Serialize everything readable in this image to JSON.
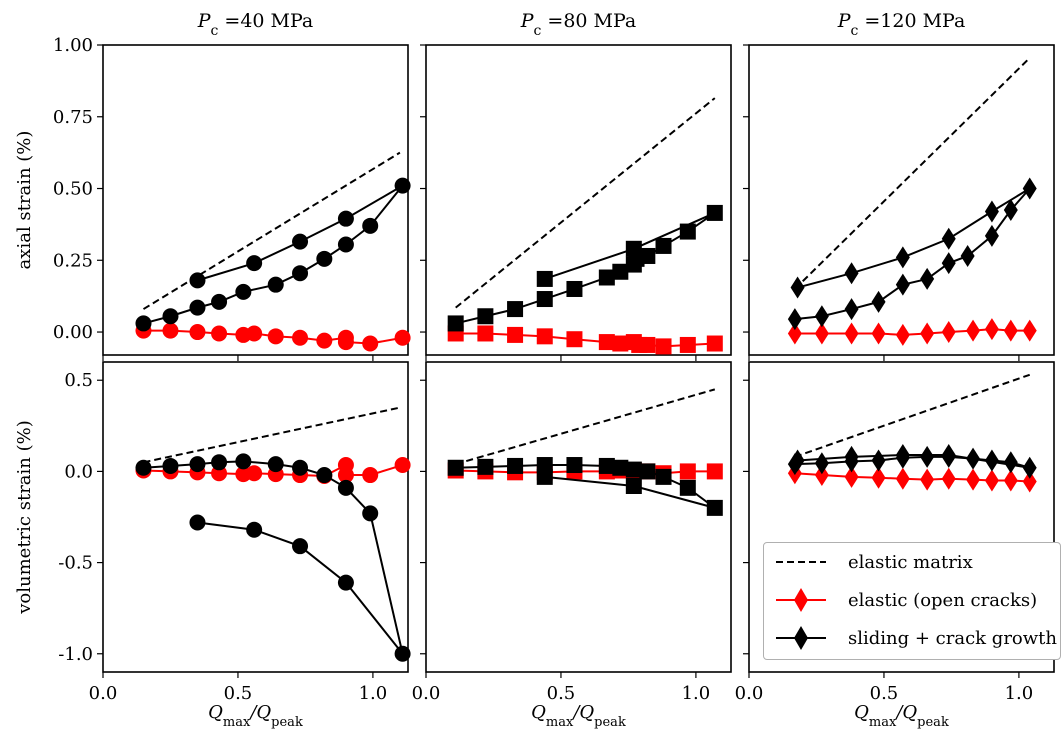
{
  "chart_data": [
    {
      "type": "line",
      "column_title": "Pc =40 MPa",
      "ylabel": "axial strain (%)",
      "xlim": [
        0,
        1.13
      ],
      "ylim": [
        -0.08,
        1.0
      ],
      "yticks": [
        "0.00",
        "0.25",
        "0.50",
        "0.75",
        "1.00"
      ],
      "series": [
        {
          "role": "elastic matrix",
          "x": [
            0.15,
            1.1
          ],
          "y": [
            0.08,
            0.625
          ]
        },
        {
          "role": "elastic (open cracks)",
          "x": [
            0.15,
            0.25,
            0.35,
            0.43,
            0.52,
            0.56,
            0.64,
            0.73,
            0.82,
            0.9,
            0.9,
            0.99,
            1.11
          ],
          "y": [
            0.005,
            0.005,
            0.0,
            -0.005,
            -0.01,
            -0.005,
            -0.015,
            -0.02,
            -0.03,
            -0.02,
            -0.035,
            -0.04,
            -0.02
          ]
        },
        {
          "role": "sliding + crack growth",
          "x": [
            0.15,
            0.25,
            0.35,
            0.43,
            0.52,
            0.64,
            0.73,
            0.82,
            0.9,
            0.99,
            1.11,
            0.9,
            0.73,
            0.56,
            0.35
          ],
          "y": [
            0.03,
            0.055,
            0.085,
            0.105,
            0.14,
            0.165,
            0.205,
            0.255,
            0.305,
            0.37,
            0.51,
            0.395,
            0.315,
            0.24,
            0.18
          ]
        }
      ]
    },
    {
      "type": "line",
      "column_title": "Pc =80 MPa",
      "ylabel": "",
      "xlim": [
        0,
        1.13
      ],
      "ylim": [
        -0.08,
        1.0
      ],
      "series": [
        {
          "role": "elastic matrix",
          "x": [
            0.11,
            1.07
          ],
          "y": [
            0.085,
            0.815
          ]
        },
        {
          "role": "elastic (open cracks)",
          "x": [
            0.11,
            0.22,
            0.33,
            0.44,
            0.55,
            0.67,
            0.72,
            0.77,
            0.79,
            0.82,
            0.88,
            0.97,
            1.07
          ],
          "y": [
            -0.005,
            -0.005,
            -0.01,
            -0.015,
            -0.025,
            -0.035,
            -0.04,
            -0.035,
            -0.045,
            -0.045,
            -0.05,
            -0.045,
            -0.04
          ]
        },
        {
          "role": "sliding + crack growth",
          "x": [
            0.11,
            0.22,
            0.33,
            0.44,
            0.55,
            0.67,
            0.72,
            0.77,
            0.78,
            0.82,
            0.88,
            0.97,
            1.07,
            0.77,
            0.44
          ],
          "y": [
            0.03,
            0.055,
            0.08,
            0.115,
            0.15,
            0.19,
            0.21,
            0.235,
            0.255,
            0.265,
            0.3,
            0.35,
            0.415,
            0.29,
            0.185
          ]
        }
      ]
    },
    {
      "type": "line",
      "column_title": "Pc =120 MPa",
      "ylabel": "",
      "xlim": [
        0,
        1.13
      ],
      "ylim": [
        -0.08,
        1.0
      ],
      "series": [
        {
          "role": "elastic matrix",
          "x": [
            0.17,
            1.04
          ],
          "y": [
            0.15,
            0.955
          ]
        },
        {
          "role": "elastic (open cracks)",
          "x": [
            0.17,
            0.27,
            0.38,
            0.48,
            0.57,
            0.66,
            0.74,
            0.83,
            0.9,
            0.97,
            1.04
          ],
          "y": [
            -0.005,
            -0.005,
            -0.005,
            -0.005,
            -0.01,
            -0.005,
            0.0,
            0.005,
            0.01,
            0.005,
            0.005
          ]
        },
        {
          "role": "sliding + crack growth",
          "x": [
            0.17,
            0.27,
            0.38,
            0.48,
            0.57,
            0.66,
            0.74,
            0.81,
            0.9,
            0.97,
            1.04,
            0.9,
            0.74,
            0.57,
            0.38,
            0.18
          ],
          "y": [
            0.045,
            0.055,
            0.08,
            0.105,
            0.165,
            0.185,
            0.24,
            0.265,
            0.335,
            0.425,
            0.5,
            0.42,
            0.325,
            0.26,
            0.205,
            0.155
          ]
        }
      ]
    },
    {
      "type": "line",
      "column_title": "",
      "xlabel": "Qmax/Qpeak",
      "ylabel": "volumetric strain (%)",
      "xlim": [
        0,
        1.13
      ],
      "ylim": [
        -1.1,
        0.6
      ],
      "xticks": [
        "0.0",
        "0.5",
        "1.0"
      ],
      "yticks": [
        "0.5",
        "0.0",
        "-0.5",
        "-1.0"
      ],
      "series": [
        {
          "role": "elastic matrix",
          "x": [
            0.15,
            1.1
          ],
          "y": [
            0.05,
            0.35
          ]
        },
        {
          "role": "elastic (open cracks)",
          "x": [
            0.15,
            0.25,
            0.35,
            0.43,
            0.52,
            0.56,
            0.64,
            0.73,
            0.82,
            0.9,
            0.9,
            0.99,
            1.11
          ],
          "y": [
            0.005,
            0.0,
            -0.005,
            -0.01,
            -0.015,
            -0.01,
            -0.015,
            -0.02,
            -0.025,
            0.035,
            -0.02,
            -0.02,
            0.035
          ]
        },
        {
          "role": "sliding + crack growth",
          "x": [
            0.15,
            0.25,
            0.35,
            0.43,
            0.52,
            0.64,
            0.73,
            0.82,
            0.9,
            0.99,
            1.11,
            0.9,
            0.73,
            0.56,
            0.35
          ],
          "y": [
            0.02,
            0.03,
            0.04,
            0.05,
            0.055,
            0.04,
            0.02,
            -0.02,
            -0.09,
            -0.23,
            -1.0,
            -0.61,
            -0.41,
            -0.32,
            -0.28
          ]
        }
      ]
    },
    {
      "type": "line",
      "column_title": "",
      "xlabel": "Qmax/Qpeak",
      "ylabel": "",
      "xlim": [
        0,
        1.13
      ],
      "ylim": [
        -1.1,
        0.6
      ],
      "xticks": [
        "0.0",
        "0.5",
        "1.0"
      ],
      "series": [
        {
          "role": "elastic matrix",
          "x": [
            0.11,
            1.07
          ],
          "y": [
            0.04,
            0.45
          ]
        },
        {
          "role": "elastic (open cracks)",
          "x": [
            0.11,
            0.22,
            0.33,
            0.44,
            0.55,
            0.67,
            0.72,
            0.77,
            0.82,
            0.88,
            0.97,
            1.07
          ],
          "y": [
            0.005,
            0.0,
            -0.005,
            -0.005,
            0.0,
            0.0,
            0.005,
            0.005,
            0.0,
            -0.01,
            0.0,
            0.0
          ]
        },
        {
          "role": "sliding + crack growth",
          "x": [
            0.11,
            0.22,
            0.33,
            0.44,
            0.55,
            0.67,
            0.72,
            0.77,
            0.82,
            0.88,
            0.97,
            1.07,
            0.77,
            0.44
          ],
          "y": [
            0.02,
            0.025,
            0.03,
            0.035,
            0.035,
            0.03,
            0.02,
            0.01,
            0.0,
            -0.03,
            -0.09,
            -0.2,
            -0.08,
            -0.03
          ]
        }
      ]
    },
    {
      "type": "line",
      "column_title": "",
      "xlabel": "Qmax/Qpeak",
      "ylabel": "",
      "xlim": [
        0,
        1.13
      ],
      "ylim": [
        -1.1,
        0.6
      ],
      "xticks": [
        "0.0",
        "0.5",
        "1.0"
      ],
      "series": [
        {
          "role": "elastic matrix",
          "x": [
            0.17,
            1.04
          ],
          "y": [
            0.08,
            0.53
          ]
        },
        {
          "role": "elastic (open cracks)",
          "x": [
            0.17,
            0.27,
            0.38,
            0.48,
            0.57,
            0.66,
            0.74,
            0.83,
            0.9,
            0.97,
            1.04
          ],
          "y": [
            -0.01,
            -0.02,
            -0.03,
            -0.035,
            -0.04,
            -0.045,
            -0.04,
            -0.045,
            -0.05,
            -0.05,
            -0.055
          ]
        },
        {
          "role": "sliding + crack growth",
          "x": [
            0.17,
            0.27,
            0.38,
            0.48,
            0.57,
            0.66,
            0.74,
            0.83,
            0.9,
            0.97,
            1.04,
            0.74,
            0.57,
            0.38,
            0.18
          ],
          "y": [
            0.04,
            0.045,
            0.055,
            0.06,
            0.075,
            0.08,
            0.08,
            0.07,
            0.06,
            0.05,
            0.02,
            0.09,
            0.09,
            0.08,
            0.06
          ]
        }
      ]
    }
  ],
  "legend": {
    "placement": "lower-right",
    "items": [
      {
        "role": "elastic matrix",
        "label": "elastic matrix",
        "color": "#000000",
        "dash": true
      },
      {
        "role": "elastic (open cracks)",
        "label": "elastic (open cracks)",
        "color": "#ff0000"
      },
      {
        "role": "sliding + crack growth",
        "label": "sliding + crack growth",
        "color": "#000000"
      }
    ]
  },
  "column_titles": [
    "=40 MPa",
    "=80 MPa",
    "=120 MPa"
  ],
  "column_markers": [
    "circle",
    "square",
    "diamond"
  ],
  "colors": {
    "red": "#ff0000",
    "black": "#000000"
  }
}
